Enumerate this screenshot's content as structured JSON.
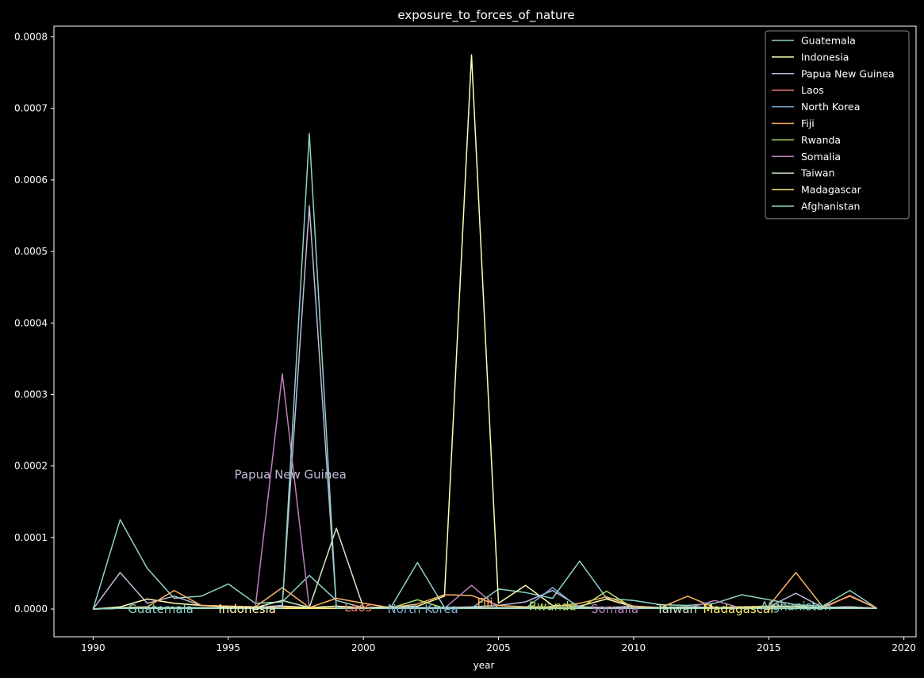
{
  "chart_data": {
    "type": "line",
    "title": "exposure_to_forces_of_nature",
    "xlabel": "year",
    "ylabel": "",
    "xlim": [
      1988.55,
      2020.45
    ],
    "ylim": [
      -3.88e-05,
      0.000815
    ],
    "xticks": [
      1990,
      1995,
      2000,
      2005,
      2010,
      2015,
      2020
    ],
    "yticks": [
      0.0,
      0.0001,
      0.0002,
      0.0003,
      0.0004,
      0.0005,
      0.0006,
      0.0007,
      0.0008
    ],
    "ytick_labels": [
      "0.0000",
      "0.0001",
      "0.0002",
      "0.0003",
      "0.0004",
      "0.0005",
      "0.0006",
      "0.0007",
      "0.0008"
    ],
    "legend_position": "top-right",
    "x": [
      1990,
      1991,
      1992,
      1993,
      1994,
      1995,
      1996,
      1997,
      1998,
      1999,
      2000,
      2001,
      2002,
      2003,
      2004,
      2005,
      2006,
      2007,
      2008,
      2009,
      2010,
      2011,
      2012,
      2013,
      2014,
      2015,
      2016,
      2017,
      2018,
      2019
    ],
    "series": [
      {
        "name": "Guatemala",
        "color": "#8dd3c7",
        "values": [
          0,
          0.000125,
          5.7e-05,
          1.5e-05,
          1.8e-05,
          3.5e-05,
          8e-06,
          1e-05,
          4.7e-05,
          1.2e-05,
          2e-06,
          1e-06,
          6.5e-05,
          2e-06,
          1e-06,
          2.8e-05,
          2.3e-05,
          1.5e-05,
          6.7e-05,
          1.5e-05,
          1.2e-05,
          6e-06,
          5e-06,
          8e-06,
          2e-05,
          1.3e-05,
          6e-06,
          4e-06,
          2.6e-05,
          1e-06
        ]
      },
      {
        "name": "Indonesia",
        "color": "#ffffb3",
        "values": [
          0,
          3e-06,
          1.4e-05,
          8e-06,
          5e-06,
          3e-06,
          2e-06,
          4e-06,
          2e-06,
          4e-06,
          2e-06,
          3e-06,
          4e-06,
          1.8e-05,
          0.000775,
          8e-06,
          3.3e-05,
          5e-06,
          4e-06,
          1.4e-05,
          3e-06,
          2e-06,
          3e-06,
          2e-06,
          2e-06,
          4e-06,
          4e-06,
          2e-06,
          3e-06,
          1e-06
        ]
      },
      {
        "name": "Papua New Guinea",
        "color": "#bebada",
        "values": [
          0,
          5.1e-05,
          8e-06,
          1.8e-05,
          5e-06,
          4e-06,
          2e-06,
          5e-06,
          0.000564,
          2e-06,
          1e-06,
          2e-06,
          2e-06,
          2e-06,
          3e-06,
          5e-06,
          1e-05,
          2.6e-05,
          3e-06,
          2e-06,
          4e-06,
          2e-06,
          3e-06,
          2e-06,
          2e-06,
          3e-06,
          2.2e-05,
          2e-06,
          3e-06,
          1e-06
        ]
      },
      {
        "name": "Laos",
        "color": "#fb8072",
        "values": [
          0,
          1e-06,
          2e-06,
          2e-06,
          1e-06,
          1e-06,
          1e-06,
          2e-06,
          1e-06,
          1e-06,
          1e-06,
          1e-06,
          2e-06,
          1e-06,
          1e-06,
          2e-06,
          1e-06,
          1e-06,
          2e-06,
          2e-06,
          1e-06,
          1e-06,
          2e-06,
          1e-06,
          1e-06,
          2e-06,
          2e-06,
          1e-06,
          1.9e-05,
          1e-06
        ]
      },
      {
        "name": "North Korea",
        "color": "#80b1d3",
        "values": [
          0,
          1e-06,
          1e-06,
          1e-06,
          1e-06,
          1e-06,
          1e-06,
          1e-06,
          1e-06,
          1e-06,
          1e-06,
          1e-06,
          1e-06,
          1e-06,
          1e-06,
          1e-06,
          1e-06,
          3e-05,
          1e-06,
          1e-06,
          1e-06,
          1e-06,
          1e-06,
          1e-06,
          1e-06,
          1e-06,
          1e-06,
          1e-06,
          1e-06,
          1e-06
        ]
      },
      {
        "name": "Fiji",
        "color": "#fdb462",
        "values": [
          0,
          2e-06,
          3e-06,
          2.6e-05,
          5e-06,
          4e-06,
          3e-06,
          3e-05,
          2e-06,
          1.5e-05,
          8e-06,
          2e-06,
          7e-06,
          2e-05,
          1.9e-05,
          5e-06,
          3e-06,
          3e-06,
          8e-06,
          1.7e-05,
          4e-06,
          2e-06,
          1.8e-05,
          2e-06,
          3e-06,
          4e-06,
          5.1e-05,
          3e-06,
          1.8e-05,
          1e-06
        ]
      },
      {
        "name": "Rwanda",
        "color": "#b3de69",
        "values": [
          0,
          1e-06,
          1e-06,
          1e-06,
          1e-06,
          1e-06,
          1e-06,
          1e-06,
          1e-06,
          1e-06,
          1e-06,
          1e-06,
          1.3e-05,
          1e-06,
          1e-06,
          1e-06,
          1e-06,
          1e-06,
          1e-06,
          2.5e-05,
          1e-06,
          1e-06,
          1e-06,
          1e-06,
          1e-06,
          1e-06,
          1e-06,
          1e-06,
          1e-06,
          1e-06
        ]
      },
      {
        "name": "Somalia",
        "color": "#bc80bd",
        "values": [
          0,
          1e-06,
          1e-06,
          1e-06,
          1e-06,
          1e-06,
          2e-06,
          0.000329,
          1e-06,
          1e-06,
          1e-06,
          1e-06,
          1e-06,
          1e-06,
          3.3e-05,
          1e-06,
          1e-06,
          1e-06,
          1e-06,
          1e-06,
          1e-06,
          1e-06,
          1e-06,
          1.2e-05,
          1e-06,
          1e-06,
          1e-06,
          1e-06,
          1e-06,
          1e-06
        ]
      },
      {
        "name": "Taiwan",
        "color": "#ccebc5",
        "values": [
          0,
          2e-06,
          2e-06,
          2e-06,
          2e-06,
          2e-06,
          2e-06,
          1.2e-05,
          2e-06,
          0.000113,
          2e-06,
          2e-06,
          2e-06,
          2e-06,
          2e-06,
          2e-06,
          2e-06,
          2e-06,
          2e-06,
          2e-06,
          2e-06,
          2e-06,
          2e-06,
          2e-06,
          2e-06,
          2e-06,
          2e-06,
          2e-06,
          2e-06,
          1e-06
        ]
      },
      {
        "name": "Madagascar",
        "color": "#ffed6f",
        "values": [
          0,
          1e-06,
          1e-06,
          1e-06,
          1e-06,
          1e-06,
          1e-06,
          1e-06,
          1e-06,
          1e-06,
          1e-06,
          1e-06,
          1e-06,
          1e-06,
          1e-06,
          1e-06,
          1e-06,
          1e-06,
          1e-06,
          1e-06,
          1e-06,
          1e-06,
          1e-06,
          1e-06,
          1e-06,
          1e-06,
          1e-06,
          1e-06,
          1e-06,
          1e-06
        ]
      },
      {
        "name": "Afghanistan",
        "color": "#8dd3c7",
        "values": [
          0,
          1e-06,
          1e-06,
          1e-06,
          1e-06,
          1e-06,
          1e-06,
          1e-06,
          0.000665,
          1e-06,
          1e-06,
          1e-06,
          1e-06,
          1e-06,
          1e-06,
          1e-06,
          1e-06,
          1e-06,
          1e-06,
          1e-06,
          1e-06,
          1e-06,
          1e-06,
          1e-06,
          1e-06,
          1e-06,
          1e-06,
          1e-06,
          1e-06,
          1e-06
        ]
      }
    ],
    "annotations": [
      {
        "text": "Guatemala",
        "x": 1992.5,
        "y": 0.0
      },
      {
        "text": "Indonesia",
        "x": 1995.7,
        "y": 0.0
      },
      {
        "text": "Papua New Guinea",
        "x": 1997.3,
        "y": 0.000188
      },
      {
        "text": "Laos",
        "x": 1999.8,
        "y": 2e-06
      },
      {
        "text": "North Korea",
        "x": 2002.2,
        "y": 0.0
      },
      {
        "text": "Fiji",
        "x": 2004.5,
        "y": 9e-06
      },
      {
        "text": "Rwanda",
        "x": 2007.0,
        "y": 4e-06
      },
      {
        "text": "Somalia",
        "x": 2009.3,
        "y": 0.0
      },
      {
        "text": "Taiwan",
        "x": 2011.6,
        "y": 0.0
      },
      {
        "text": "Madagascar",
        "x": 2013.9,
        "y": 0.0
      },
      {
        "text": "Afghanistan",
        "x": 2016.0,
        "y": 4e-06
      }
    ]
  }
}
